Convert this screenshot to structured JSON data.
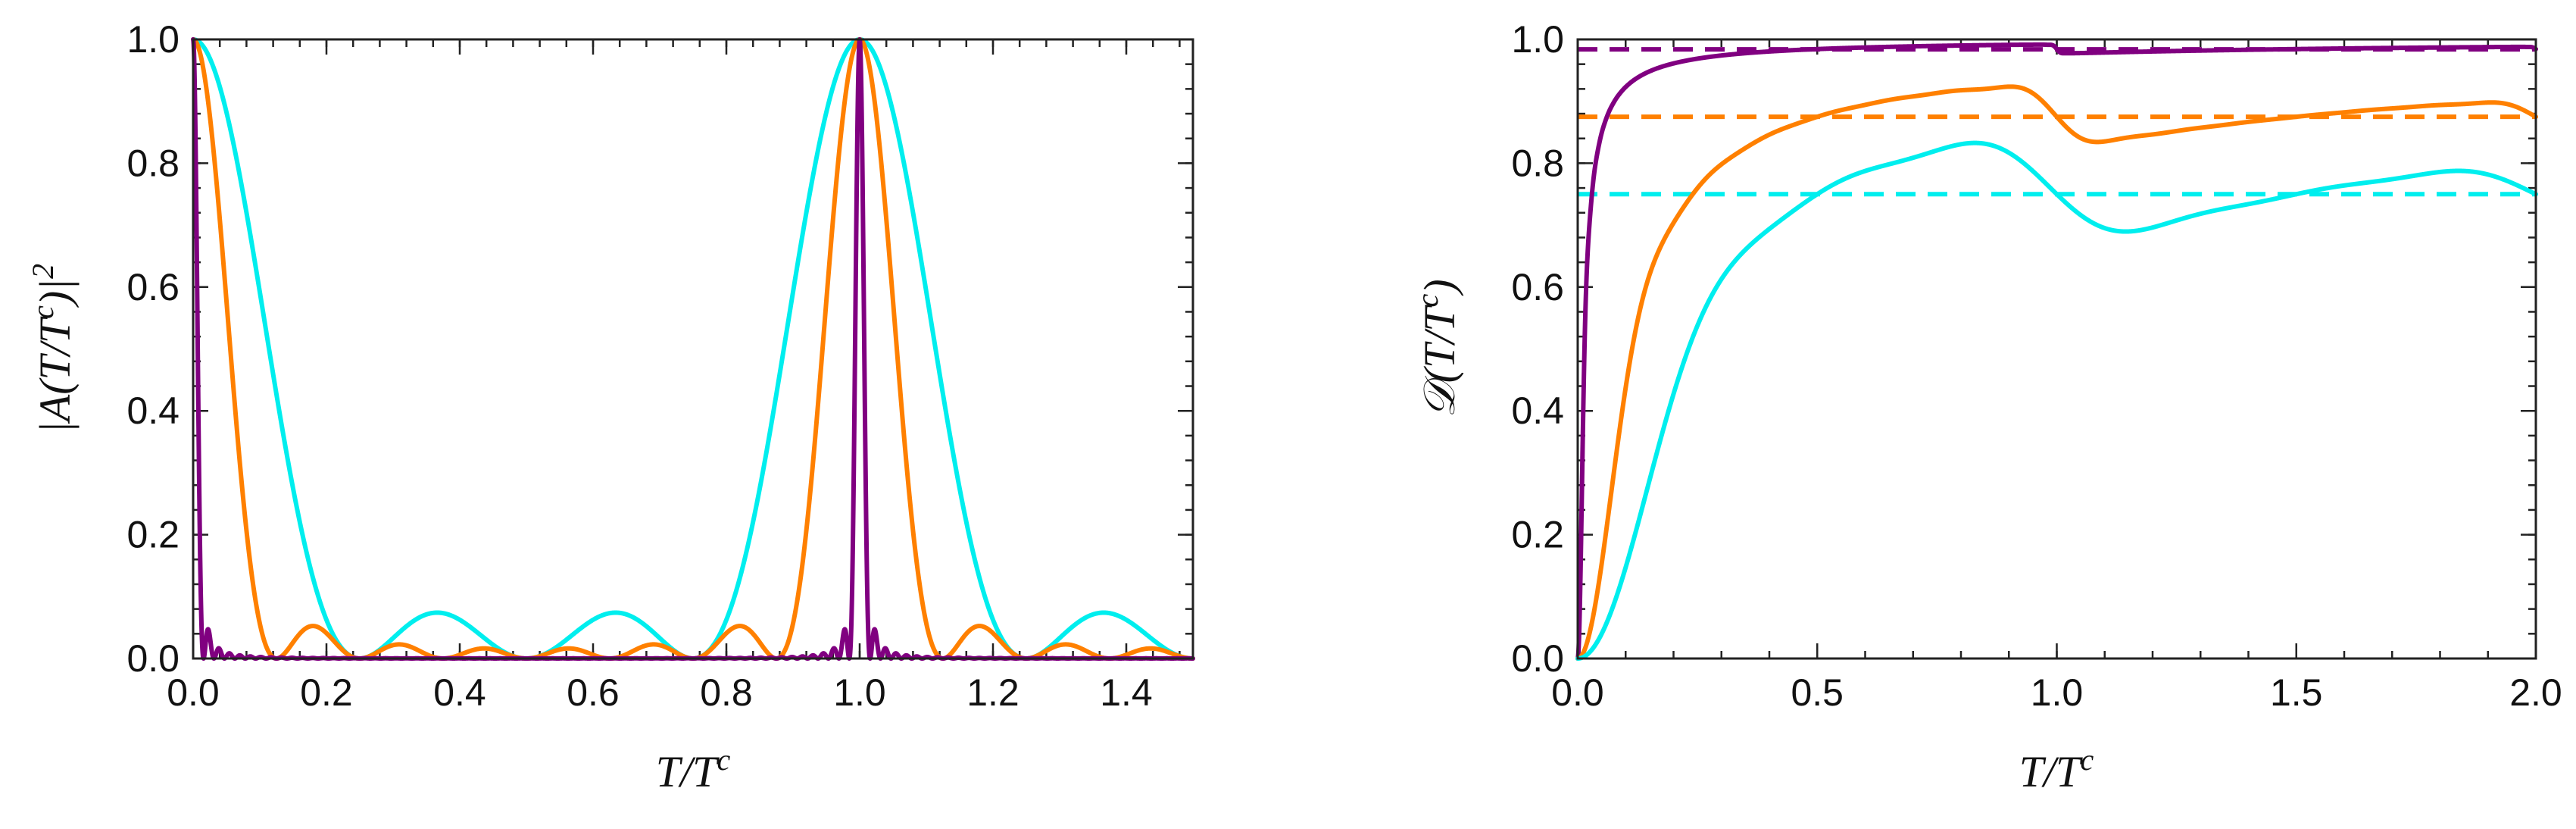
{
  "chart_data": [
    {
      "type": "line",
      "id": "left",
      "xlabel": "T/T^c",
      "ylabel": "|A(T/T^c)|^2",
      "xlim": [
        0,
        1.5
      ],
      "ylim": [
        0,
        1
      ],
      "x_ticks": [
        0.0,
        0.2,
        0.4,
        0.6,
        0.8,
        1.0,
        1.2,
        1.4
      ],
      "x_tick_labels": [
        "0.0",
        "0.2",
        "0.4",
        "0.6",
        "0.8",
        "1.0",
        "1.2",
        "1.4"
      ],
      "y_ticks": [
        0.0,
        0.2,
        0.4,
        0.6,
        0.8,
        1.0
      ],
      "y_tick_labels": [
        "0.0",
        "0.2",
        "0.4",
        "0.6",
        "0.8",
        "1.0"
      ],
      "grid": false,
      "series": [
        {
          "name": "cyan",
          "color": "#00EEEE",
          "N": 4,
          "kind": "sinc_periodic",
          "period": 1.0
        },
        {
          "name": "orange",
          "color": "#FF8000",
          "N": 8,
          "kind": "sinc_periodic",
          "period": 1.0
        },
        {
          "name": "purple",
          "color": "#800080",
          "N": 64,
          "kind": "sinc_periodic",
          "period": 1.0
        }
      ],
      "notes": "Periodic interference peaks of height 1.0 at T/T^c = 0 and 1.0; cyan side lobes reach about 0.07 near 0.36, 0.64, 1.36; orange side lobes about 0.05 near 0.18, 0.82, 1.18."
    },
    {
      "type": "line",
      "id": "right",
      "xlabel": "T/T^c",
      "ylabel": "D(T/T^c)",
      "xlim": [
        0,
        2
      ],
      "ylim": [
        0,
        1
      ],
      "x_ticks": [
        0.0,
        0.5,
        1.0,
        1.5,
        2.0
      ],
      "x_tick_labels": [
        "0.0",
        "0.5",
        "1.0",
        "1.5",
        "2.0"
      ],
      "y_ticks": [
        0.0,
        0.2,
        0.4,
        0.6,
        0.8,
        1.0
      ],
      "y_tick_labels": [
        "0.0",
        "0.2",
        "0.4",
        "0.6",
        "0.8",
        "1.0"
      ],
      "grid": false,
      "series": [
        {
          "name": "purple",
          "color": "#800080",
          "N": 64,
          "asymptote": 0.984
        },
        {
          "name": "orange",
          "color": "#FF8000",
          "N": 8,
          "asymptote": 0.875
        },
        {
          "name": "cyan",
          "color": "#00EEEE",
          "N": 4,
          "asymptote": 0.75
        }
      ],
      "reference_lines": [
        {
          "name": "purple-asymptote",
          "color": "#800080",
          "y": 0.984,
          "style": "dashed"
        },
        {
          "name": "orange-asymptote",
          "color": "#FF8000",
          "y": 0.875,
          "style": "dashed"
        },
        {
          "name": "cyan-asymptote",
          "color": "#00EEEE",
          "y": 0.75,
          "style": "dashed"
        }
      ]
    }
  ]
}
